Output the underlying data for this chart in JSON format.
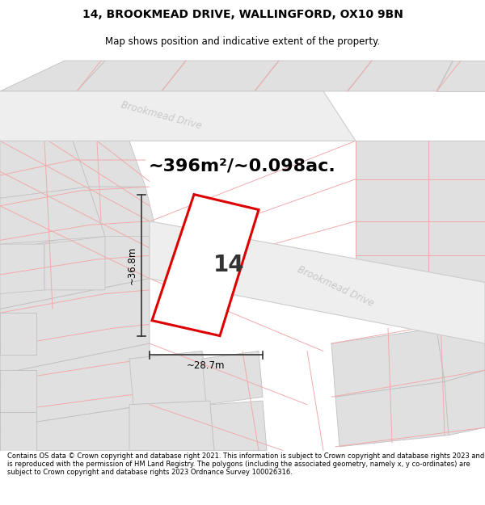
{
  "title_line1": "14, BROOKMEAD DRIVE, WALLINGFORD, OX10 9BN",
  "title_line2": "Map shows position and indicative extent of the property.",
  "area_text": "~396m²/~0.098ac.",
  "label_number": "14",
  "dim_width": "~28.7m",
  "dim_height": "~36.8m",
  "footer_text": "Contains OS data © Crown copyright and database right 2021. This information is subject to Crown copyright and database rights 2023 and is reproduced with the permission of HM Land Registry. The polygons (including the associated geometry, namely x, y co-ordinates) are subject to Crown copyright and database rights 2023 Ordnance Survey 100026316.",
  "map_bg": "#f7f7f7",
  "road_color_light": "#f2aaaa",
  "road_color_label": "#c8c8c8",
  "property_color": "#dd0000",
  "neighbour_fill": "#e0e0e0",
  "neighbour_stroke": "#c0c0c0",
  "road_fill": "#eeeeee",
  "road_stroke": "#cccccc"
}
